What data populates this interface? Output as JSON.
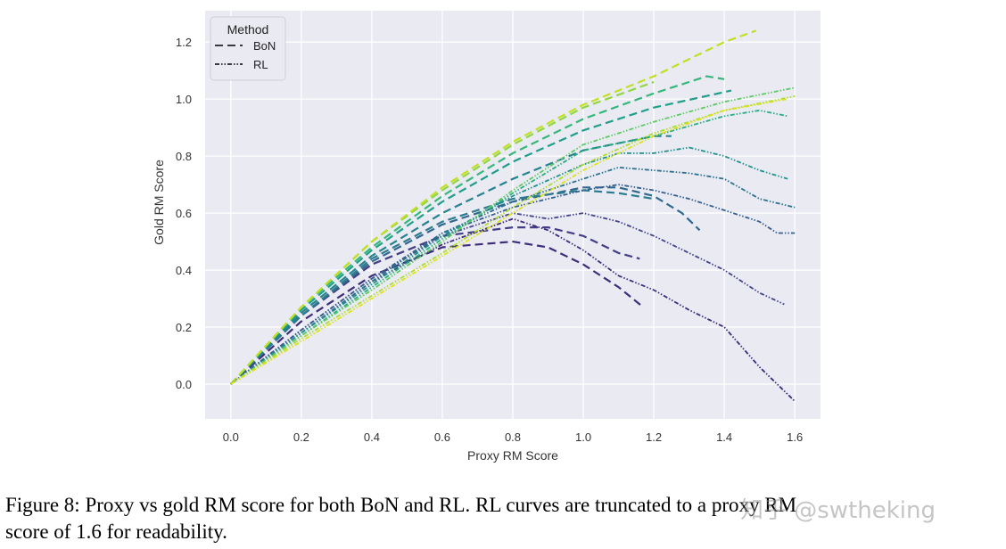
{
  "chart_data": {
    "type": "line",
    "xlabel": "Proxy RM Score",
    "ylabel": "Gold RM Score",
    "xlim": [
      -0.073,
      1.673
    ],
    "ylim": [
      -0.122,
      1.31
    ],
    "xticks": [
      "0.0",
      "0.2",
      "0.4",
      "0.6",
      "0.8",
      "1.0",
      "1.2",
      "1.4",
      "1.6"
    ],
    "yticks": [
      "0.0",
      "0.2",
      "0.4",
      "0.6",
      "0.8",
      "1.0",
      "1.2"
    ],
    "grid": true,
    "background": "#eaeaf2",
    "legend": {
      "title": "Method",
      "placement": "top-left",
      "entries": [
        {
          "label": "BoN",
          "style": "dashed"
        },
        {
          "label": "RL",
          "style": "dash-dot-dot"
        }
      ]
    },
    "series": [
      {
        "method": "BoN",
        "color": "#3e2d79",
        "points": [
          [
            0,
            0
          ],
          [
            0.2,
            0.22
          ],
          [
            0.4,
            0.38
          ],
          [
            0.6,
            0.48
          ],
          [
            0.8,
            0.5
          ],
          [
            0.9,
            0.48
          ],
          [
            1.0,
            0.42
          ],
          [
            1.1,
            0.34
          ],
          [
            1.17,
            0.27
          ]
        ]
      },
      {
        "method": "BoN",
        "color": "#433e85",
        "points": [
          [
            0,
            0
          ],
          [
            0.2,
            0.24
          ],
          [
            0.4,
            0.42
          ],
          [
            0.6,
            0.52
          ],
          [
            0.8,
            0.55
          ],
          [
            0.9,
            0.55
          ],
          [
            1.0,
            0.52
          ],
          [
            1.1,
            0.46
          ],
          [
            1.16,
            0.44
          ]
        ]
      },
      {
        "method": "BoN",
        "color": "#31688e",
        "points": [
          [
            0,
            0
          ],
          [
            0.2,
            0.24
          ],
          [
            0.4,
            0.43
          ],
          [
            0.6,
            0.56
          ],
          [
            0.8,
            0.64
          ],
          [
            1.0,
            0.69
          ],
          [
            1.1,
            0.69
          ],
          [
            1.2,
            0.66
          ],
          [
            1.28,
            0.6
          ],
          [
            1.33,
            0.54
          ]
        ]
      },
      {
        "method": "BoN",
        "color": "#2d7b8e",
        "points": [
          [
            0,
            0
          ],
          [
            0.2,
            0.24
          ],
          [
            0.4,
            0.44
          ],
          [
            0.6,
            0.57
          ],
          [
            0.8,
            0.65
          ],
          [
            1.0,
            0.68
          ],
          [
            1.1,
            0.67
          ],
          [
            1.2,
            0.65
          ]
        ]
      },
      {
        "method": "BoN",
        "color": "#26828e",
        "points": [
          [
            0,
            0
          ],
          [
            0.2,
            0.25
          ],
          [
            0.4,
            0.45
          ],
          [
            0.6,
            0.6
          ],
          [
            0.8,
            0.72
          ],
          [
            1.0,
            0.82
          ],
          [
            1.2,
            0.87
          ],
          [
            1.25,
            0.87
          ]
        ]
      },
      {
        "method": "BoN",
        "color": "#1f9e89",
        "points": [
          [
            0,
            0
          ],
          [
            0.2,
            0.26
          ],
          [
            0.4,
            0.47
          ],
          [
            0.6,
            0.64
          ],
          [
            0.8,
            0.78
          ],
          [
            1.0,
            0.89
          ],
          [
            1.2,
            0.97
          ],
          [
            1.42,
            1.03
          ]
        ]
      },
      {
        "method": "BoN",
        "color": "#35b779",
        "points": [
          [
            0,
            0
          ],
          [
            0.2,
            0.27
          ],
          [
            0.4,
            0.48
          ],
          [
            0.6,
            0.66
          ],
          [
            0.8,
            0.81
          ],
          [
            1.0,
            0.93
          ],
          [
            1.2,
            1.02
          ],
          [
            1.35,
            1.08
          ],
          [
            1.4,
            1.07
          ]
        ]
      },
      {
        "method": "BoN",
        "color": "#8fd744",
        "points": [
          [
            0,
            0
          ],
          [
            0.2,
            0.27
          ],
          [
            0.4,
            0.5
          ],
          [
            0.6,
            0.68
          ],
          [
            0.8,
            0.84
          ],
          [
            1.0,
            0.97
          ],
          [
            1.2,
            1.06
          ]
        ]
      },
      {
        "method": "BoN",
        "color": "#c2df23",
        "points": [
          [
            0,
            0
          ],
          [
            0.2,
            0.27
          ],
          [
            0.4,
            0.5
          ],
          [
            0.6,
            0.69
          ],
          [
            0.8,
            0.85
          ],
          [
            1.0,
            0.98
          ],
          [
            1.2,
            1.08
          ],
          [
            1.4,
            1.2
          ],
          [
            1.49,
            1.24
          ]
        ]
      },
      {
        "method": "RL",
        "color": "#3e2d79",
        "points": [
          [
            0,
            0
          ],
          [
            0.2,
            0.18
          ],
          [
            0.4,
            0.36
          ],
          [
            0.6,
            0.49
          ],
          [
            0.8,
            0.58
          ],
          [
            0.9,
            0.54
          ],
          [
            1.0,
            0.47
          ],
          [
            1.1,
            0.38
          ],
          [
            1.2,
            0.33
          ],
          [
            1.3,
            0.26
          ],
          [
            1.4,
            0.2
          ],
          [
            1.5,
            0.06
          ],
          [
            1.6,
            -0.06
          ]
        ]
      },
      {
        "method": "RL",
        "color": "#414487",
        "points": [
          [
            0,
            0
          ],
          [
            0.2,
            0.19
          ],
          [
            0.4,
            0.37
          ],
          [
            0.6,
            0.52
          ],
          [
            0.8,
            0.6
          ],
          [
            0.9,
            0.58
          ],
          [
            1.0,
            0.6
          ],
          [
            1.1,
            0.57
          ],
          [
            1.2,
            0.52
          ],
          [
            1.3,
            0.46
          ],
          [
            1.4,
            0.4
          ],
          [
            1.5,
            0.32
          ],
          [
            1.57,
            0.28
          ]
        ]
      },
      {
        "method": "RL",
        "color": "#355f8d",
        "points": [
          [
            0,
            0
          ],
          [
            0.2,
            0.19
          ],
          [
            0.4,
            0.37
          ],
          [
            0.6,
            0.53
          ],
          [
            0.8,
            0.62
          ],
          [
            1.0,
            0.68
          ],
          [
            1.1,
            0.7
          ],
          [
            1.2,
            0.68
          ],
          [
            1.3,
            0.65
          ],
          [
            1.4,
            0.61
          ],
          [
            1.5,
            0.57
          ],
          [
            1.55,
            0.53
          ],
          [
            1.6,
            0.53
          ]
        ]
      },
      {
        "method": "RL",
        "color": "#2c728e",
        "points": [
          [
            0,
            0
          ],
          [
            0.2,
            0.18
          ],
          [
            0.4,
            0.36
          ],
          [
            0.6,
            0.53
          ],
          [
            0.8,
            0.64
          ],
          [
            1.0,
            0.72
          ],
          [
            1.1,
            0.76
          ],
          [
            1.2,
            0.75
          ],
          [
            1.3,
            0.74
          ],
          [
            1.4,
            0.72
          ],
          [
            1.5,
            0.65
          ],
          [
            1.6,
            0.62
          ]
        ]
      },
      {
        "method": "RL",
        "color": "#21918c",
        "points": [
          [
            0,
            0
          ],
          [
            0.2,
            0.18
          ],
          [
            0.4,
            0.35
          ],
          [
            0.6,
            0.52
          ],
          [
            0.8,
            0.66
          ],
          [
            1.0,
            0.77
          ],
          [
            1.1,
            0.81
          ],
          [
            1.2,
            0.81
          ],
          [
            1.3,
            0.83
          ],
          [
            1.4,
            0.8
          ],
          [
            1.5,
            0.75
          ],
          [
            1.58,
            0.72
          ]
        ]
      },
      {
        "method": "RL",
        "color": "#28ae80",
        "points": [
          [
            0,
            0
          ],
          [
            0.2,
            0.17
          ],
          [
            0.4,
            0.34
          ],
          [
            0.6,
            0.51
          ],
          [
            0.8,
            0.67
          ],
          [
            1.0,
            0.82
          ],
          [
            1.2,
            0.87
          ],
          [
            1.4,
            0.94
          ],
          [
            1.5,
            0.96
          ],
          [
            1.58,
            0.94
          ]
        ]
      },
      {
        "method": "RL",
        "color": "#5ec962",
        "points": [
          [
            0,
            0
          ],
          [
            0.2,
            0.17
          ],
          [
            0.4,
            0.33
          ],
          [
            0.6,
            0.5
          ],
          [
            0.8,
            0.68
          ],
          [
            1.0,
            0.84
          ],
          [
            1.2,
            0.92
          ],
          [
            1.4,
            0.99
          ],
          [
            1.6,
            1.04
          ]
        ]
      },
      {
        "method": "RL",
        "color": "#addc30",
        "points": [
          [
            0,
            0
          ],
          [
            0.2,
            0.16
          ],
          [
            0.4,
            0.31
          ],
          [
            0.6,
            0.46
          ],
          [
            0.8,
            0.62
          ],
          [
            1.0,
            0.77
          ],
          [
            1.2,
            0.88
          ],
          [
            1.4,
            0.96
          ],
          [
            1.6,
            1.01
          ]
        ]
      },
      {
        "method": "RL",
        "color": "#dde318",
        "points": [
          [
            0,
            0
          ],
          [
            0.2,
            0.15
          ],
          [
            0.4,
            0.3
          ],
          [
            0.6,
            0.45
          ],
          [
            0.8,
            0.6
          ],
          [
            1.0,
            0.75
          ],
          [
            1.2,
            0.87
          ],
          [
            1.4,
            0.96
          ],
          [
            1.58,
            1.0
          ]
        ]
      }
    ]
  },
  "caption": {
    "line1": "Figure 8: Proxy vs gold RM score for both BoN and RL. RL curves are truncated to a proxy RM",
    "line2": "score of 1.6 for readability."
  },
  "watermark": "知乎 @swtheking"
}
